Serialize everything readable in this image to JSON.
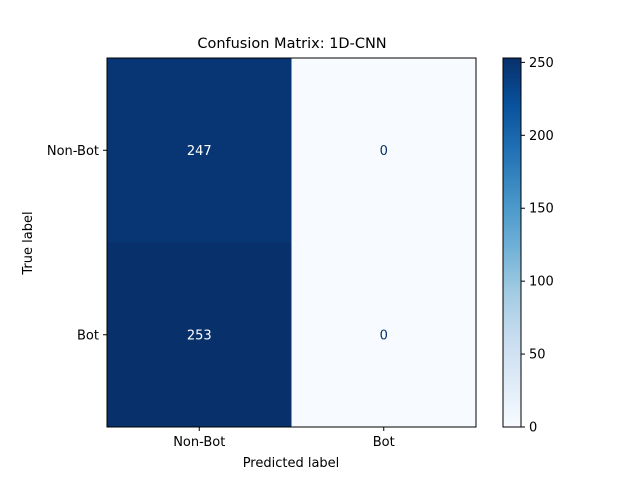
{
  "chart_data": {
    "type": "heatmap",
    "title": "Confusion Matrix: 1D-CNN",
    "xlabel": "Predicted label",
    "ylabel": "True label",
    "x_categories": [
      "Non-Bot",
      "Bot"
    ],
    "y_categories": [
      "Non-Bot",
      "Bot"
    ],
    "values": [
      [
        247,
        0
      ],
      [
        253,
        0
      ]
    ],
    "colormap": "Blues",
    "colorbar": {
      "vmin": 0,
      "vmax": 253,
      "ticks": [
        0,
        50,
        100,
        150,
        200,
        250
      ]
    },
    "grid": false
  }
}
